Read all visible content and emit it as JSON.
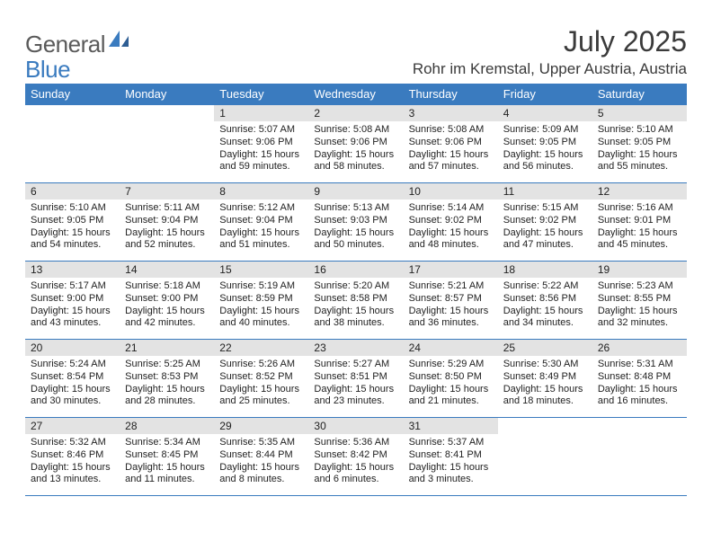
{
  "logo": {
    "text1": "General",
    "text2": "Blue"
  },
  "title": "July 2025",
  "location": "Rohr im Kremstal, Upper Austria, Austria",
  "dayHeaders": [
    "Sunday",
    "Monday",
    "Tuesday",
    "Wednesday",
    "Thursday",
    "Friday",
    "Saturday"
  ],
  "colors": {
    "headerBg": "#3a7bbf",
    "headerFg": "#ffffff",
    "cellNumberBg": "#e3e3e3",
    "borderColor": "#3a7bbf",
    "logoGray": "#5a5a5a",
    "logoBlue": "#3a7bbf"
  },
  "weeks": [
    [
      {
        "empty": true
      },
      {
        "empty": true
      },
      {
        "num": "1",
        "sunrise": "Sunrise: 5:07 AM",
        "sunset": "Sunset: 9:06 PM",
        "day1": "Daylight: 15 hours",
        "day2": "and 59 minutes."
      },
      {
        "num": "2",
        "sunrise": "Sunrise: 5:08 AM",
        "sunset": "Sunset: 9:06 PM",
        "day1": "Daylight: 15 hours",
        "day2": "and 58 minutes."
      },
      {
        "num": "3",
        "sunrise": "Sunrise: 5:08 AM",
        "sunset": "Sunset: 9:06 PM",
        "day1": "Daylight: 15 hours",
        "day2": "and 57 minutes."
      },
      {
        "num": "4",
        "sunrise": "Sunrise: 5:09 AM",
        "sunset": "Sunset: 9:05 PM",
        "day1": "Daylight: 15 hours",
        "day2": "and 56 minutes."
      },
      {
        "num": "5",
        "sunrise": "Sunrise: 5:10 AM",
        "sunset": "Sunset: 9:05 PM",
        "day1": "Daylight: 15 hours",
        "day2": "and 55 minutes."
      }
    ],
    [
      {
        "num": "6",
        "sunrise": "Sunrise: 5:10 AM",
        "sunset": "Sunset: 9:05 PM",
        "day1": "Daylight: 15 hours",
        "day2": "and 54 minutes."
      },
      {
        "num": "7",
        "sunrise": "Sunrise: 5:11 AM",
        "sunset": "Sunset: 9:04 PM",
        "day1": "Daylight: 15 hours",
        "day2": "and 52 minutes."
      },
      {
        "num": "8",
        "sunrise": "Sunrise: 5:12 AM",
        "sunset": "Sunset: 9:04 PM",
        "day1": "Daylight: 15 hours",
        "day2": "and 51 minutes."
      },
      {
        "num": "9",
        "sunrise": "Sunrise: 5:13 AM",
        "sunset": "Sunset: 9:03 PM",
        "day1": "Daylight: 15 hours",
        "day2": "and 50 minutes."
      },
      {
        "num": "10",
        "sunrise": "Sunrise: 5:14 AM",
        "sunset": "Sunset: 9:02 PM",
        "day1": "Daylight: 15 hours",
        "day2": "and 48 minutes."
      },
      {
        "num": "11",
        "sunrise": "Sunrise: 5:15 AM",
        "sunset": "Sunset: 9:02 PM",
        "day1": "Daylight: 15 hours",
        "day2": "and 47 minutes."
      },
      {
        "num": "12",
        "sunrise": "Sunrise: 5:16 AM",
        "sunset": "Sunset: 9:01 PM",
        "day1": "Daylight: 15 hours",
        "day2": "and 45 minutes."
      }
    ],
    [
      {
        "num": "13",
        "sunrise": "Sunrise: 5:17 AM",
        "sunset": "Sunset: 9:00 PM",
        "day1": "Daylight: 15 hours",
        "day2": "and 43 minutes."
      },
      {
        "num": "14",
        "sunrise": "Sunrise: 5:18 AM",
        "sunset": "Sunset: 9:00 PM",
        "day1": "Daylight: 15 hours",
        "day2": "and 42 minutes."
      },
      {
        "num": "15",
        "sunrise": "Sunrise: 5:19 AM",
        "sunset": "Sunset: 8:59 PM",
        "day1": "Daylight: 15 hours",
        "day2": "and 40 minutes."
      },
      {
        "num": "16",
        "sunrise": "Sunrise: 5:20 AM",
        "sunset": "Sunset: 8:58 PM",
        "day1": "Daylight: 15 hours",
        "day2": "and 38 minutes."
      },
      {
        "num": "17",
        "sunrise": "Sunrise: 5:21 AM",
        "sunset": "Sunset: 8:57 PM",
        "day1": "Daylight: 15 hours",
        "day2": "and 36 minutes."
      },
      {
        "num": "18",
        "sunrise": "Sunrise: 5:22 AM",
        "sunset": "Sunset: 8:56 PM",
        "day1": "Daylight: 15 hours",
        "day2": "and 34 minutes."
      },
      {
        "num": "19",
        "sunrise": "Sunrise: 5:23 AM",
        "sunset": "Sunset: 8:55 PM",
        "day1": "Daylight: 15 hours",
        "day2": "and 32 minutes."
      }
    ],
    [
      {
        "num": "20",
        "sunrise": "Sunrise: 5:24 AM",
        "sunset": "Sunset: 8:54 PM",
        "day1": "Daylight: 15 hours",
        "day2": "and 30 minutes."
      },
      {
        "num": "21",
        "sunrise": "Sunrise: 5:25 AM",
        "sunset": "Sunset: 8:53 PM",
        "day1": "Daylight: 15 hours",
        "day2": "and 28 minutes."
      },
      {
        "num": "22",
        "sunrise": "Sunrise: 5:26 AM",
        "sunset": "Sunset: 8:52 PM",
        "day1": "Daylight: 15 hours",
        "day2": "and 25 minutes."
      },
      {
        "num": "23",
        "sunrise": "Sunrise: 5:27 AM",
        "sunset": "Sunset: 8:51 PM",
        "day1": "Daylight: 15 hours",
        "day2": "and 23 minutes."
      },
      {
        "num": "24",
        "sunrise": "Sunrise: 5:29 AM",
        "sunset": "Sunset: 8:50 PM",
        "day1": "Daylight: 15 hours",
        "day2": "and 21 minutes."
      },
      {
        "num": "25",
        "sunrise": "Sunrise: 5:30 AM",
        "sunset": "Sunset: 8:49 PM",
        "day1": "Daylight: 15 hours",
        "day2": "and 18 minutes."
      },
      {
        "num": "26",
        "sunrise": "Sunrise: 5:31 AM",
        "sunset": "Sunset: 8:48 PM",
        "day1": "Daylight: 15 hours",
        "day2": "and 16 minutes."
      }
    ],
    [
      {
        "num": "27",
        "sunrise": "Sunrise: 5:32 AM",
        "sunset": "Sunset: 8:46 PM",
        "day1": "Daylight: 15 hours",
        "day2": "and 13 minutes."
      },
      {
        "num": "28",
        "sunrise": "Sunrise: 5:34 AM",
        "sunset": "Sunset: 8:45 PM",
        "day1": "Daylight: 15 hours",
        "day2": "and 11 minutes."
      },
      {
        "num": "29",
        "sunrise": "Sunrise: 5:35 AM",
        "sunset": "Sunset: 8:44 PM",
        "day1": "Daylight: 15 hours",
        "day2": "and 8 minutes."
      },
      {
        "num": "30",
        "sunrise": "Sunrise: 5:36 AM",
        "sunset": "Sunset: 8:42 PM",
        "day1": "Daylight: 15 hours",
        "day2": "and 6 minutes."
      },
      {
        "num": "31",
        "sunrise": "Sunrise: 5:37 AM",
        "sunset": "Sunset: 8:41 PM",
        "day1": "Daylight: 15 hours",
        "day2": "and 3 minutes."
      },
      {
        "empty": true
      },
      {
        "empty": true
      }
    ]
  ]
}
